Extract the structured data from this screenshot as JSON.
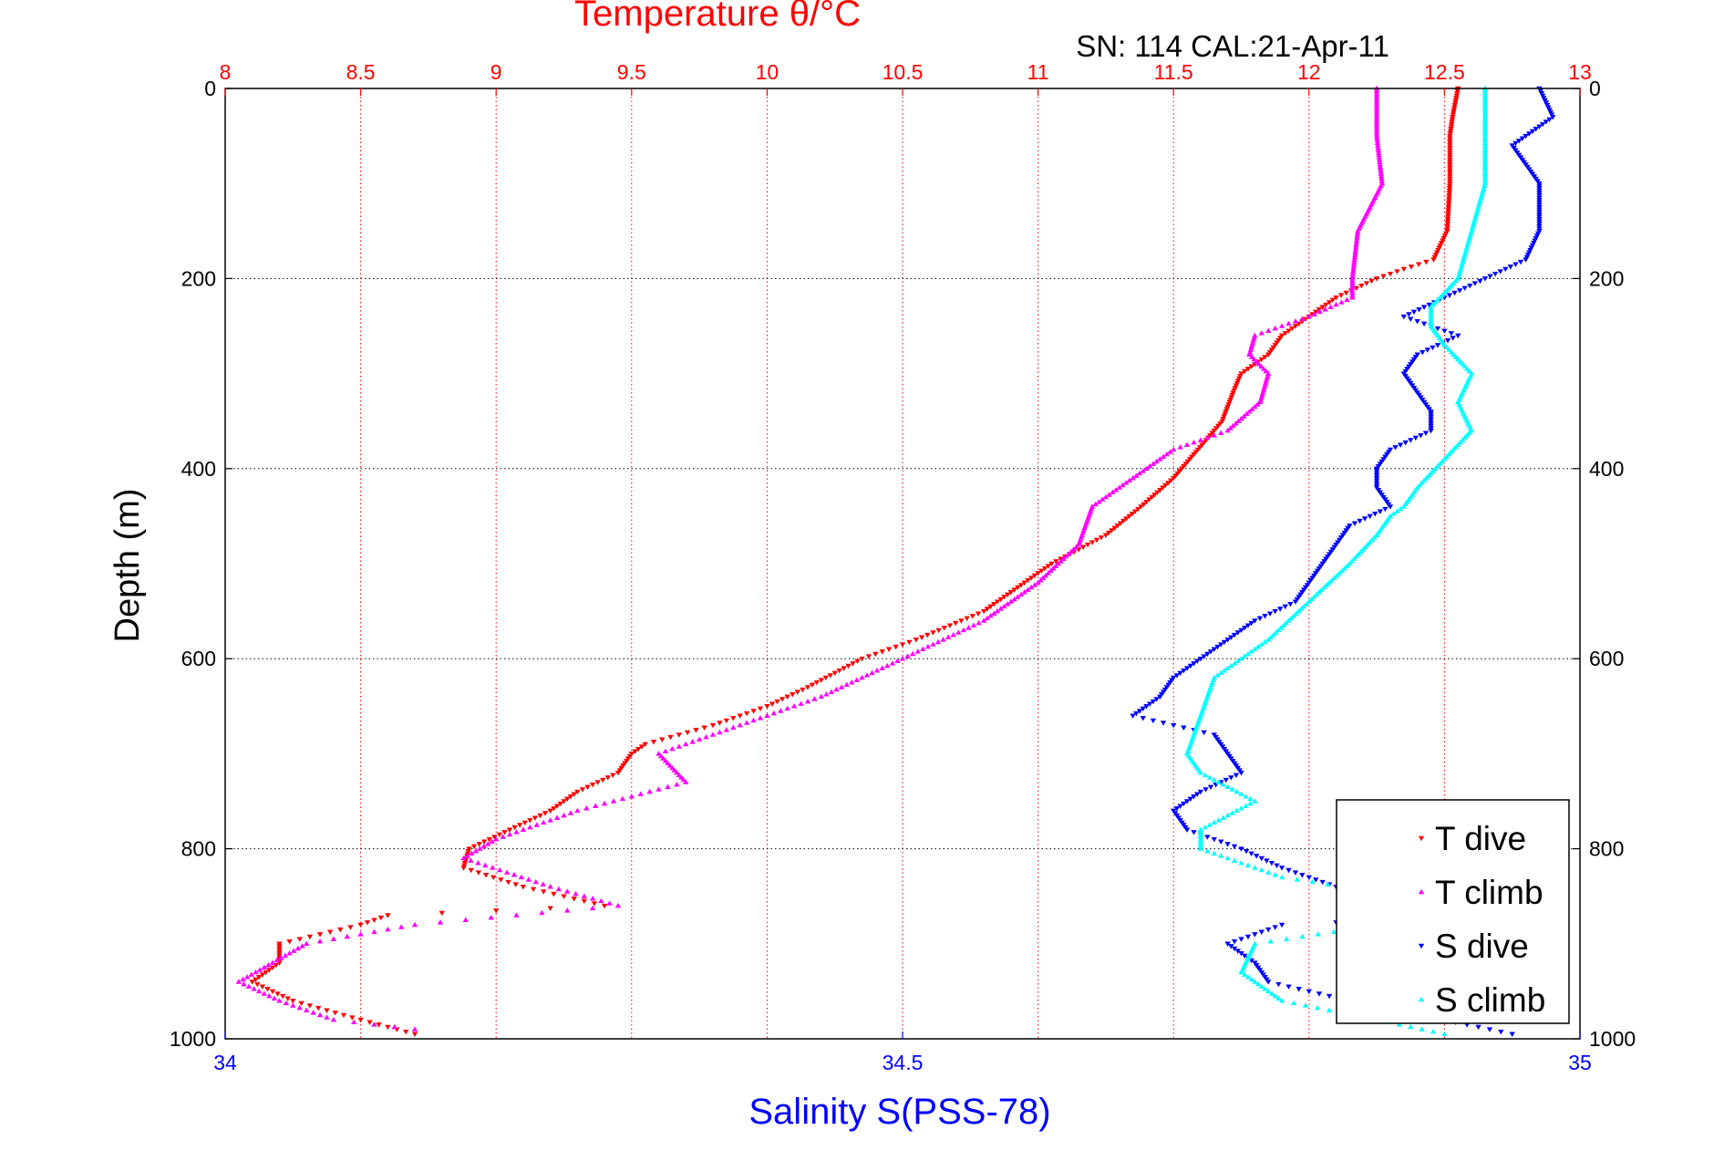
{
  "chart_data": {
    "type": "scatter",
    "title": "Temperature θ/°C",
    "subtitle": "SN: 114  CAL:21-Apr-11",
    "ylabel": "Depth (m)",
    "xlabel": "Salinity S(PSS-78)",
    "x_top": {
      "label": "Temperature θ/°C",
      "lim": [
        8,
        13
      ],
      "ticks": [
        8,
        8.5,
        9,
        9.5,
        10,
        10.5,
        11,
        11.5,
        12,
        12.5,
        13
      ],
      "tick_labels": [
        "8",
        "8.5",
        "9",
        "9.5",
        "10",
        "10.5",
        "11",
        "11.5",
        "12",
        "12.5",
        "13"
      ],
      "color": "#ff0000"
    },
    "x_bottom": {
      "label": "Salinity S(PSS-78)",
      "lim": [
        34,
        35
      ],
      "ticks": [
        34,
        34.5,
        35
      ],
      "tick_labels": [
        "34",
        "34.5",
        "35"
      ],
      "color": "#0000ff"
    },
    "y": {
      "lim": [
        0,
        1000
      ],
      "reversed": true,
      "ticks": [
        0,
        200,
        400,
        600,
        800,
        1000
      ],
      "tick_labels": [
        "0",
        "200",
        "400",
        "600",
        "800",
        "1000"
      ]
    },
    "grid": true,
    "legend": {
      "position": "bottom-right",
      "entries": [
        "T dive",
        "T climb",
        "S dive",
        "S climb"
      ]
    },
    "series": [
      {
        "name": "T dive",
        "axis": "temperature",
        "color": "#ff0000",
        "marker": "triangle-down",
        "depth": [
          0,
          30,
          50,
          100,
          150,
          180,
          190,
          200,
          220,
          240,
          260,
          280,
          300,
          320,
          350,
          370,
          390,
          410,
          440,
          470,
          500,
          520,
          550,
          580,
          600,
          630,
          650,
          670,
          690,
          700,
          720,
          740,
          760,
          780,
          800,
          820,
          840,
          860,
          870,
          880,
          900,
          920,
          940,
          960,
          980,
          995
        ],
        "values": [
          12.55,
          12.53,
          12.52,
          12.52,
          12.51,
          12.46,
          12.35,
          12.25,
          12.1,
          12.0,
          11.9,
          11.85,
          11.75,
          11.72,
          11.68,
          11.62,
          11.56,
          11.5,
          11.38,
          11.25,
          11.05,
          10.95,
          10.8,
          10.55,
          10.35,
          10.15,
          10.0,
          9.8,
          9.55,
          9.5,
          9.45,
          9.3,
          9.2,
          9.05,
          8.9,
          8.88,
          9.1,
          9.4,
          8.6,
          8.5,
          8.2,
          8.2,
          8.1,
          8.25,
          8.5,
          8.7
        ]
      },
      {
        "name": "T climb",
        "axis": "temperature",
        "color": "#ff00ff",
        "marker": "triangle-up",
        "depth": [
          0,
          50,
          100,
          150,
          200,
          220,
          240,
          260,
          280,
          300,
          330,
          360,
          380,
          420,
          440,
          480,
          520,
          560,
          600,
          640,
          670,
          700,
          730,
          760,
          790,
          810,
          840,
          860,
          880,
          900,
          940,
          960,
          980,
          990
        ],
        "values": [
          12.25,
          12.25,
          12.27,
          12.18,
          12.16,
          12.16,
          12.0,
          11.8,
          11.78,
          11.85,
          11.82,
          11.7,
          11.5,
          11.3,
          11.2,
          11.15,
          11.0,
          10.8,
          10.5,
          10.2,
          9.9,
          9.6,
          9.7,
          9.3,
          9.0,
          8.88,
          9.2,
          9.45,
          8.7,
          8.3,
          8.05,
          8.2,
          8.4,
          8.7
        ]
      },
      {
        "name": "S dive",
        "axis": "salinity",
        "color": "#0000ff",
        "marker": "triangle-down",
        "depth": [
          0,
          30,
          60,
          80,
          100,
          150,
          180,
          200,
          220,
          240,
          260,
          280,
          300,
          320,
          340,
          360,
          380,
          400,
          420,
          440,
          460,
          500,
          540,
          560,
          580,
          600,
          620,
          640,
          660,
          680,
          700,
          720,
          740,
          760,
          780,
          800,
          820,
          840,
          860,
          870,
          880,
          900,
          920,
          940,
          960,
          980,
          995
        ],
        "values": [
          34.97,
          34.98,
          34.95,
          34.96,
          34.97,
          34.97,
          34.96,
          34.93,
          34.9,
          34.87,
          34.91,
          34.88,
          34.87,
          34.88,
          34.89,
          34.89,
          34.86,
          34.85,
          34.85,
          34.86,
          34.83,
          34.81,
          34.79,
          34.76,
          34.74,
          34.72,
          34.7,
          34.69,
          34.67,
          34.73,
          34.74,
          34.75,
          34.72,
          34.7,
          34.71,
          34.75,
          34.78,
          34.82,
          34.88,
          34.94,
          34.78,
          34.74,
          34.76,
          34.77,
          34.83,
          34.9,
          34.95
        ]
      },
      {
        "name": "S climb",
        "axis": "salinity",
        "color": "#00ffff",
        "marker": "triangle-up",
        "depth": [
          0,
          50,
          100,
          150,
          200,
          230,
          250,
          270,
          300,
          330,
          360,
          390,
          420,
          440,
          450,
          470,
          500,
          540,
          580,
          620,
          660,
          700,
          720,
          750,
          780,
          800,
          830,
          850,
          870,
          900,
          930,
          960,
          980,
          995
        ],
        "values": [
          34.93,
          34.93,
          34.93,
          34.92,
          34.91,
          34.89,
          34.89,
          34.9,
          34.92,
          34.91,
          34.92,
          34.9,
          34.88,
          34.87,
          34.86,
          34.85,
          34.83,
          34.8,
          34.77,
          34.73,
          34.72,
          34.71,
          34.72,
          34.76,
          34.72,
          34.72,
          34.78,
          34.87,
          34.9,
          34.76,
          34.75,
          34.78,
          34.85,
          34.9
        ]
      }
    ]
  }
}
